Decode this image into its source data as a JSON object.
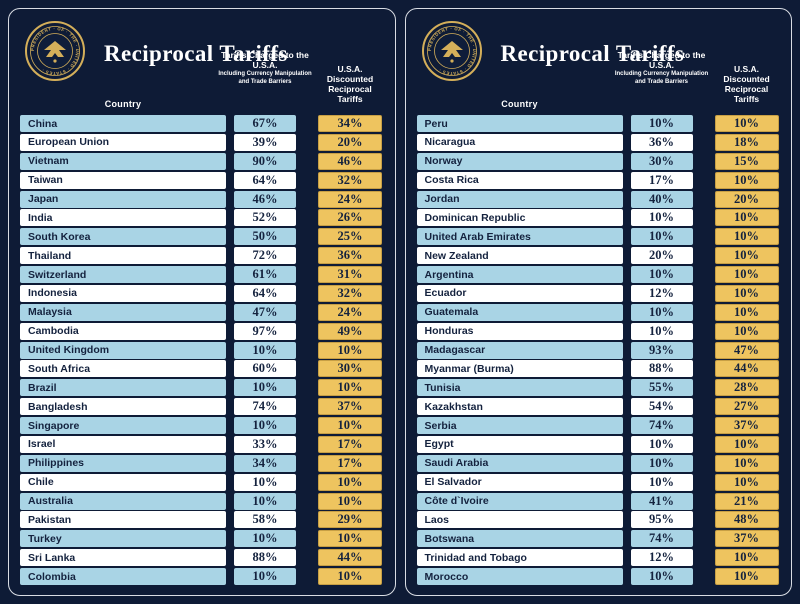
{
  "header": {
    "title": "Reciprocal Tariffs",
    "country_label": "Country",
    "charged_label": "Tariffs Charged to the U.S.A.",
    "charged_sub": "Including Currency Manipulation and Trade Barriers",
    "discount_label": "U.S.A. Discounted Reciprocal Tariffs"
  },
  "colors": {
    "background": "#0e1b36",
    "row_blue": "#a9d4e5",
    "row_white": "#ffffff",
    "gold": "#eec45f",
    "text_dark": "#14223e",
    "seal_gold": "#d4af5a"
  },
  "seal_name": "Seal of the President of the United States",
  "chart_data": [
    {
      "type": "table",
      "title": "Reciprocal Tariffs",
      "columns": [
        "Country",
        "Tariffs Charged to the U.S.A. (Including Currency Manipulation and Trade Barriers)",
        "U.S.A. Discounted Reciprocal Tariffs"
      ],
      "rows": [
        [
          "China",
          "67%",
          "34%"
        ],
        [
          "European Union",
          "39%",
          "20%"
        ],
        [
          "Vietnam",
          "90%",
          "46%"
        ],
        [
          "Taiwan",
          "64%",
          "32%"
        ],
        [
          "Japan",
          "46%",
          "24%"
        ],
        [
          "India",
          "52%",
          "26%"
        ],
        [
          "South Korea",
          "50%",
          "25%"
        ],
        [
          "Thailand",
          "72%",
          "36%"
        ],
        [
          "Switzerland",
          "61%",
          "31%"
        ],
        [
          "Indonesia",
          "64%",
          "32%"
        ],
        [
          "Malaysia",
          "47%",
          "24%"
        ],
        [
          "Cambodia",
          "97%",
          "49%"
        ],
        [
          "United Kingdom",
          "10%",
          "10%"
        ],
        [
          "South Africa",
          "60%",
          "30%"
        ],
        [
          "Brazil",
          "10%",
          "10%"
        ],
        [
          "Bangladesh",
          "74%",
          "37%"
        ],
        [
          "Singapore",
          "10%",
          "10%"
        ],
        [
          "Israel",
          "33%",
          "17%"
        ],
        [
          "Philippines",
          "34%",
          "17%"
        ],
        [
          "Chile",
          "10%",
          "10%"
        ],
        [
          "Australia",
          "10%",
          "10%"
        ],
        [
          "Pakistan",
          "58%",
          "29%"
        ],
        [
          "Turkey",
          "10%",
          "10%"
        ],
        [
          "Sri Lanka",
          "88%",
          "44%"
        ],
        [
          "Colombia",
          "10%",
          "10%"
        ]
      ]
    },
    {
      "type": "table",
      "title": "Reciprocal Tariffs",
      "columns": [
        "Country",
        "Tariffs Charged to the U.S.A. (Including Currency Manipulation and Trade Barriers)",
        "U.S.A. Discounted Reciprocal Tariffs"
      ],
      "rows": [
        [
          "Peru",
          "10%",
          "10%"
        ],
        [
          "Nicaragua",
          "36%",
          "18%"
        ],
        [
          "Norway",
          "30%",
          "15%"
        ],
        [
          "Costa Rica",
          "17%",
          "10%"
        ],
        [
          "Jordan",
          "40%",
          "20%"
        ],
        [
          "Dominican Republic",
          "10%",
          "10%"
        ],
        [
          "United Arab Emirates",
          "10%",
          "10%"
        ],
        [
          "New Zealand",
          "20%",
          "10%"
        ],
        [
          "Argentina",
          "10%",
          "10%"
        ],
        [
          "Ecuador",
          "12%",
          "10%"
        ],
        [
          "Guatemala",
          "10%",
          "10%"
        ],
        [
          "Honduras",
          "10%",
          "10%"
        ],
        [
          "Madagascar",
          "93%",
          "47%"
        ],
        [
          "Myanmar (Burma)",
          "88%",
          "44%"
        ],
        [
          "Tunisia",
          "55%",
          "28%"
        ],
        [
          "Kazakhstan",
          "54%",
          "27%"
        ],
        [
          "Serbia",
          "74%",
          "37%"
        ],
        [
          "Egypt",
          "10%",
          "10%"
        ],
        [
          "Saudi Arabia",
          "10%",
          "10%"
        ],
        [
          "El Salvador",
          "10%",
          "10%"
        ],
        [
          "Côte d`Ivoire",
          "41%",
          "21%"
        ],
        [
          "Laos",
          "95%",
          "48%"
        ],
        [
          "Botswana",
          "74%",
          "37%"
        ],
        [
          "Trinidad and Tobago",
          "12%",
          "10%"
        ],
        [
          "Morocco",
          "10%",
          "10%"
        ]
      ]
    }
  ]
}
